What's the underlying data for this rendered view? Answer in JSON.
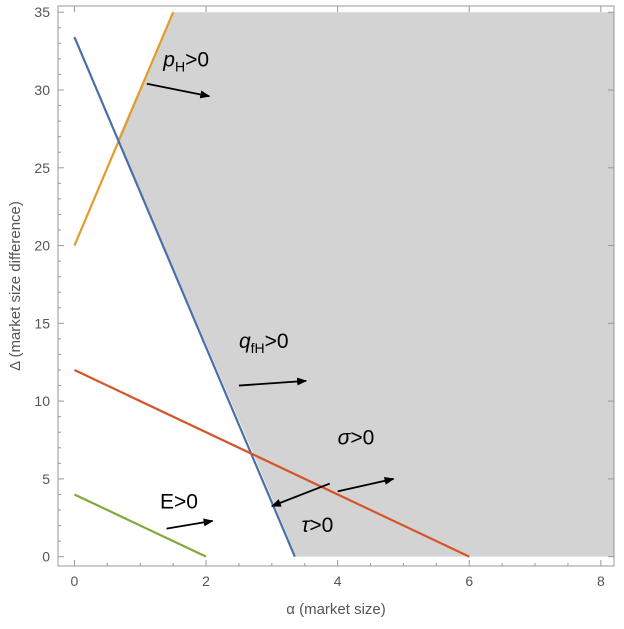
{
  "chart_data": {
    "type": "line",
    "title": "",
    "xlabel": "α (market size)",
    "ylabel": "Δ (market size difference)",
    "xlim": [
      -0.25,
      8.2
    ],
    "ylim": [
      -0.6,
      35.4
    ],
    "x_ticks": [
      0,
      2,
      4,
      6,
      8
    ],
    "y_ticks": [
      0,
      5,
      10,
      15,
      20,
      25,
      30,
      35
    ],
    "x_tick_labels": [
      "0",
      "2",
      "4",
      "6",
      "8"
    ],
    "y_tick_labels": [
      "0",
      "5",
      "10",
      "15",
      "20",
      "25",
      "30",
      "35"
    ],
    "grid": false,
    "shaded_region": {
      "color": "#d3d3d3",
      "polygon": [
        [
          1.5,
          35
        ],
        [
          8.2,
          35
        ],
        [
          8.2,
          0
        ],
        [
          3.37,
          0
        ],
        [
          2.72,
          6.6
        ],
        [
          0.66,
          26.9
        ]
      ]
    },
    "series": [
      {
        "color": "#e39c2a",
        "x": [
          0,
          1.5
        ],
        "y": [
          20,
          35
        ]
      },
      {
        "color": "#4a6fa5",
        "x": [
          0,
          3.35
        ],
        "y": [
          33.4,
          0
        ]
      },
      {
        "color": "#d4552a",
        "x": [
          0,
          6
        ],
        "y": [
          12,
          0
        ]
      },
      {
        "color": "#84a83a",
        "x": [
          0,
          2
        ],
        "y": [
          4,
          0
        ]
      }
    ],
    "annotations": [
      {
        "id": "pH",
        "main": "p",
        "sub": "H",
        "suffix": ">0",
        "italic_main": true,
        "text_at": [
          1.35,
          31.5
        ],
        "arrow_from": [
          1.1,
          30.4
        ],
        "arrow_to": [
          2.05,
          29.6
        ]
      },
      {
        "id": "qfH",
        "main": "q",
        "sub": "fH",
        "suffix": ">0",
        "italic_main": true,
        "text_at": [
          2.5,
          13.4
        ],
        "arrow_from": [
          2.5,
          11.0
        ],
        "arrow_to": [
          3.52,
          11.3
        ]
      },
      {
        "id": "sigma",
        "main": "σ",
        "sub": "",
        "suffix": ">0",
        "italic_main": true,
        "text_at": [
          4.0,
          7.2
        ],
        "arrow_from": [
          4.0,
          4.2
        ],
        "arrow_to": [
          4.85,
          5.0
        ]
      },
      {
        "id": "tau",
        "main": "τ",
        "sub": "",
        "suffix": ">0",
        "italic_main": true,
        "text_at": [
          3.45,
          1.6
        ],
        "arrow_from": [
          3.88,
          4.7
        ],
        "arrow_to": [
          3.0,
          3.25
        ]
      },
      {
        "id": "E",
        "main": "E",
        "sub": "",
        "suffix": ">0",
        "italic_main": false,
        "text_at": [
          1.3,
          3.1
        ],
        "arrow_from": [
          1.4,
          1.8
        ],
        "arrow_to": [
          2.1,
          2.3
        ]
      }
    ]
  }
}
